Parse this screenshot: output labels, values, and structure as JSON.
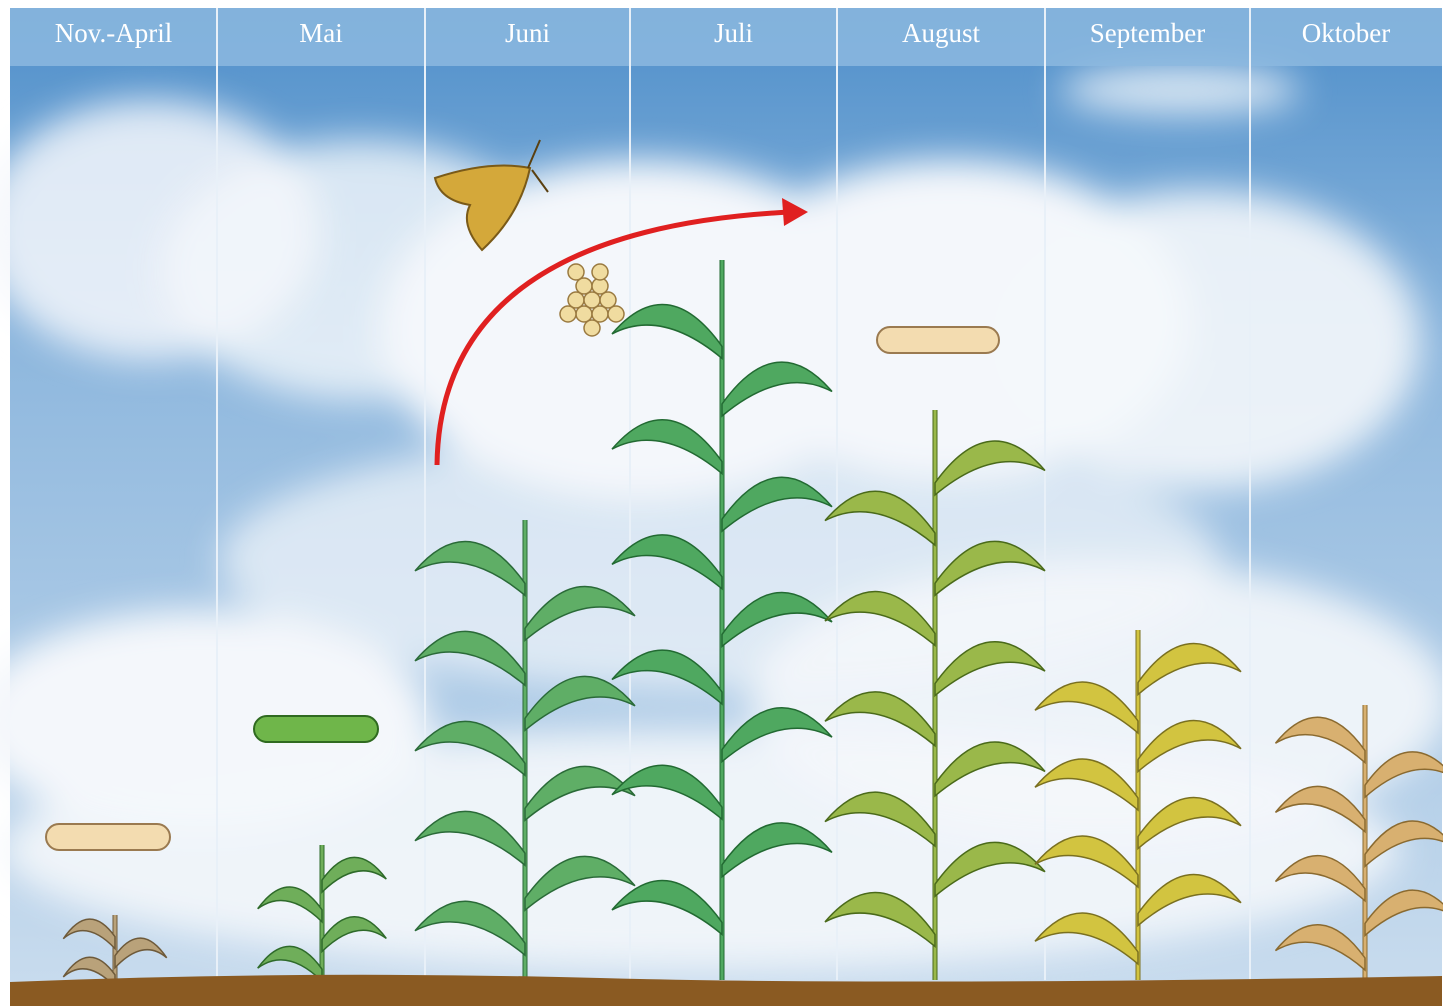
{
  "header": {
    "months": [
      "Nov.-April",
      "Mai",
      "Juni",
      "Juli",
      "August",
      "September",
      "Oktober"
    ]
  }
}
